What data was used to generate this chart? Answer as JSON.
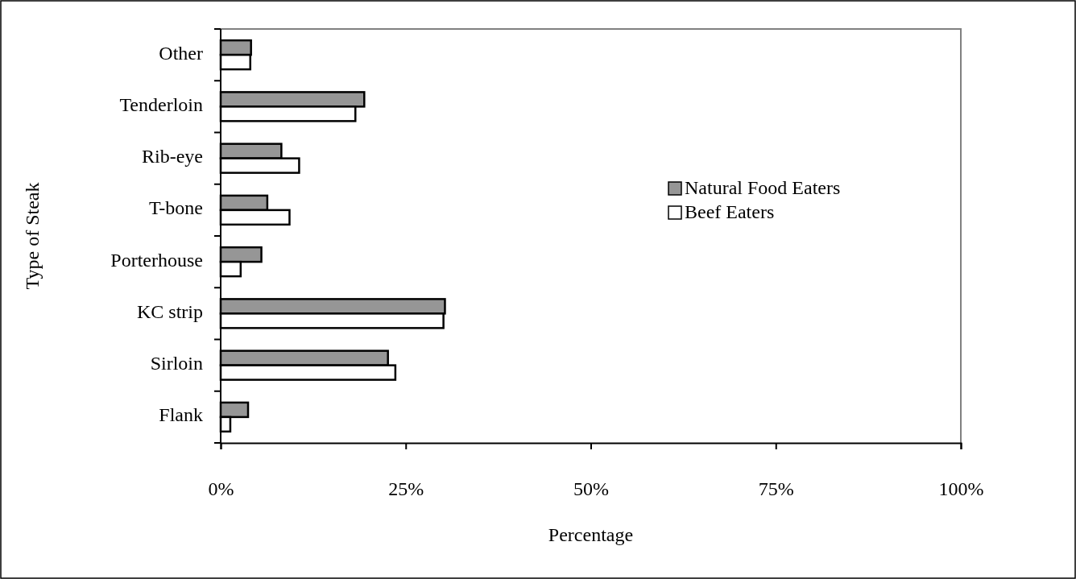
{
  "chart_data": {
    "type": "bar",
    "orientation": "horizontal",
    "xlabel": "Percentage",
    "ylabel": "Type of Steak",
    "categories": [
      "Other",
      "Tenderloin",
      "Rib-eye",
      "T-bone",
      "Porterhouse",
      "KC strip",
      "Sirloin",
      "Flank"
    ],
    "series": [
      {
        "name": "Natural Food Eaters",
        "color": "#969696",
        "values": [
          4.1,
          19.4,
          8.2,
          6.3,
          5.5,
          30.3,
          22.6,
          3.7
        ]
      },
      {
        "name": "Beef Eaters",
        "color": "#ffffff",
        "values": [
          4.0,
          18.2,
          10.6,
          9.3,
          2.7,
          30.1,
          23.6,
          1.3
        ]
      }
    ],
    "xlim": [
      0,
      100
    ],
    "xticks": [
      {
        "value": 0,
        "label": "0%"
      },
      {
        "value": 25,
        "label": "25%"
      },
      {
        "value": 50,
        "label": "50%"
      },
      {
        "value": 75,
        "label": "75%"
      },
      {
        "value": 100,
        "label": "100%"
      }
    ],
    "grid": false,
    "legend": "right"
  }
}
